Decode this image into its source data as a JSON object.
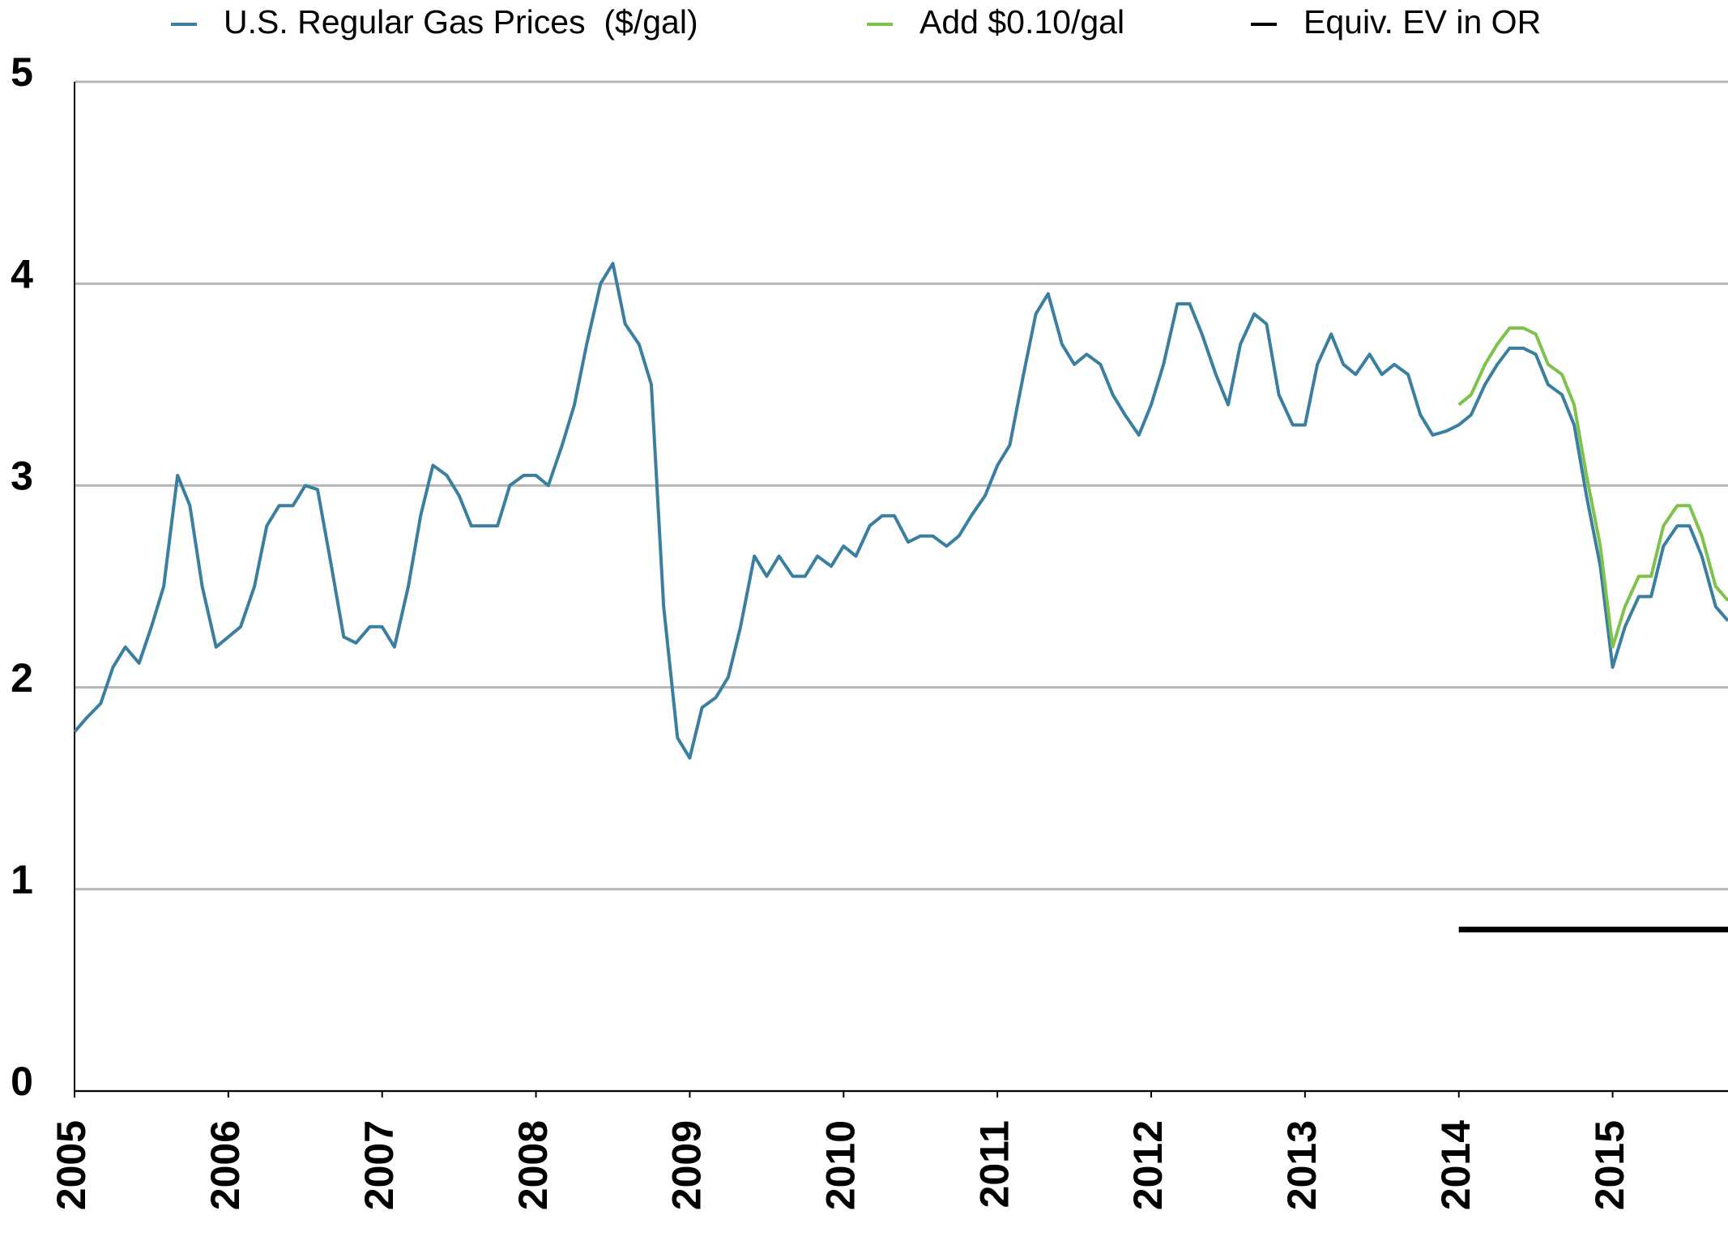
{
  "chart_data": {
    "type": "line",
    "xlim": [
      2005,
      2015.75
    ],
    "ylim": [
      0,
      5
    ],
    "xticks": [
      2005,
      2006,
      2007,
      2008,
      2009,
      2010,
      2011,
      2012,
      2013,
      2014,
      2015
    ],
    "yticks": [
      0,
      1,
      2,
      3,
      4,
      5
    ],
    "grid": true,
    "legend": "top",
    "series": [
      {
        "name": "U.S. Regular Gas Prices  ($/gal)",
        "color": "#3a7fa0",
        "x": [
          2005.0,
          2005.08,
          2005.17,
          2005.25,
          2005.33,
          2005.42,
          2005.5,
          2005.58,
          2005.67,
          2005.75,
          2005.83,
          2005.92,
          2006.0,
          2006.08,
          2006.17,
          2006.25,
          2006.33,
          2006.42,
          2006.5,
          2006.58,
          2006.67,
          2006.75,
          2006.83,
          2006.92,
          2007.0,
          2007.08,
          2007.17,
          2007.25,
          2007.33,
          2007.42,
          2007.5,
          2007.58,
          2007.67,
          2007.75,
          2007.83,
          2007.92,
          2008.0,
          2008.08,
          2008.17,
          2008.25,
          2008.33,
          2008.42,
          2008.5,
          2008.58,
          2008.67,
          2008.75,
          2008.83,
          2008.92,
          2009.0,
          2009.08,
          2009.17,
          2009.25,
          2009.33,
          2009.42,
          2009.5,
          2009.58,
          2009.67,
          2009.75,
          2009.83,
          2009.92,
          2010.0,
          2010.08,
          2010.17,
          2010.25,
          2010.33,
          2010.42,
          2010.5,
          2010.58,
          2010.67,
          2010.75,
          2010.83,
          2010.92,
          2011.0,
          2011.08,
          2011.17,
          2011.25,
          2011.33,
          2011.42,
          2011.5,
          2011.58,
          2011.67,
          2011.75,
          2011.83,
          2011.92,
          2012.0,
          2012.08,
          2012.17,
          2012.25,
          2012.33,
          2012.42,
          2012.5,
          2012.58,
          2012.67,
          2012.75,
          2012.83,
          2012.92,
          2013.0,
          2013.08,
          2013.17,
          2013.25,
          2013.33,
          2013.42,
          2013.5,
          2013.58,
          2013.67,
          2013.75,
          2013.83,
          2013.92,
          2014.0,
          2014.08,
          2014.17,
          2014.25,
          2014.33,
          2014.42,
          2014.5,
          2014.58,
          2014.67,
          2014.75,
          2014.83,
          2014.92,
          2015.0,
          2015.08,
          2015.17,
          2015.25,
          2015.33,
          2015.42,
          2015.5,
          2015.58,
          2015.67,
          2015.75
        ],
        "values": [
          1.78,
          1.85,
          1.92,
          2.1,
          2.2,
          2.12,
          2.3,
          2.5,
          3.05,
          2.9,
          2.5,
          2.2,
          2.25,
          2.3,
          2.5,
          2.8,
          2.9,
          2.9,
          3.0,
          2.98,
          2.6,
          2.25,
          2.22,
          2.3,
          2.3,
          2.2,
          2.5,
          2.85,
          3.1,
          3.05,
          2.95,
          2.8,
          2.8,
          2.8,
          3.0,
          3.05,
          3.05,
          3.0,
          3.2,
          3.4,
          3.7,
          4.0,
          4.1,
          3.8,
          3.7,
          3.5,
          2.4,
          1.75,
          1.65,
          1.9,
          1.95,
          2.05,
          2.3,
          2.65,
          2.55,
          2.65,
          2.55,
          2.55,
          2.65,
          2.6,
          2.7,
          2.65,
          2.8,
          2.85,
          2.85,
          2.72,
          2.75,
          2.75,
          2.7,
          2.75,
          2.85,
          2.95,
          3.1,
          3.2,
          3.55,
          3.85,
          3.95,
          3.7,
          3.6,
          3.65,
          3.6,
          3.45,
          3.35,
          3.25,
          3.4,
          3.6,
          3.9,
          3.9,
          3.75,
          3.55,
          3.4,
          3.7,
          3.85,
          3.8,
          3.45,
          3.3,
          3.3,
          3.6,
          3.75,
          3.6,
          3.55,
          3.65,
          3.55,
          3.6,
          3.55,
          3.35,
          3.25,
          3.27,
          3.3,
          3.35,
          3.5,
          3.6,
          3.68,
          3.68,
          3.65,
          3.5,
          3.45,
          3.3,
          2.95,
          2.6,
          2.1,
          2.3,
          2.45,
          2.45,
          2.7,
          2.8,
          2.8,
          2.65,
          2.4,
          2.33
        ]
      },
      {
        "name": "Add $0.10/gal",
        "color": "#7dc24b",
        "x": [
          2014.0,
          2014.08,
          2014.17,
          2014.25,
          2014.33,
          2014.42,
          2014.5,
          2014.58,
          2014.67,
          2014.75,
          2014.83,
          2014.92,
          2015.0,
          2015.08,
          2015.17,
          2015.25,
          2015.33,
          2015.42,
          2015.5,
          2015.58,
          2015.67,
          2015.75
        ],
        "values": [
          3.4,
          3.45,
          3.6,
          3.7,
          3.78,
          3.78,
          3.75,
          3.6,
          3.55,
          3.4,
          3.05,
          2.7,
          2.2,
          2.4,
          2.55,
          2.55,
          2.8,
          2.9,
          2.9,
          2.75,
          2.5,
          2.43
        ]
      },
      {
        "name": "Equiv. EV in OR",
        "color": "#000000",
        "x": [
          2014.0,
          2015.75
        ],
        "values": [
          0.8,
          0.8
        ]
      }
    ]
  }
}
